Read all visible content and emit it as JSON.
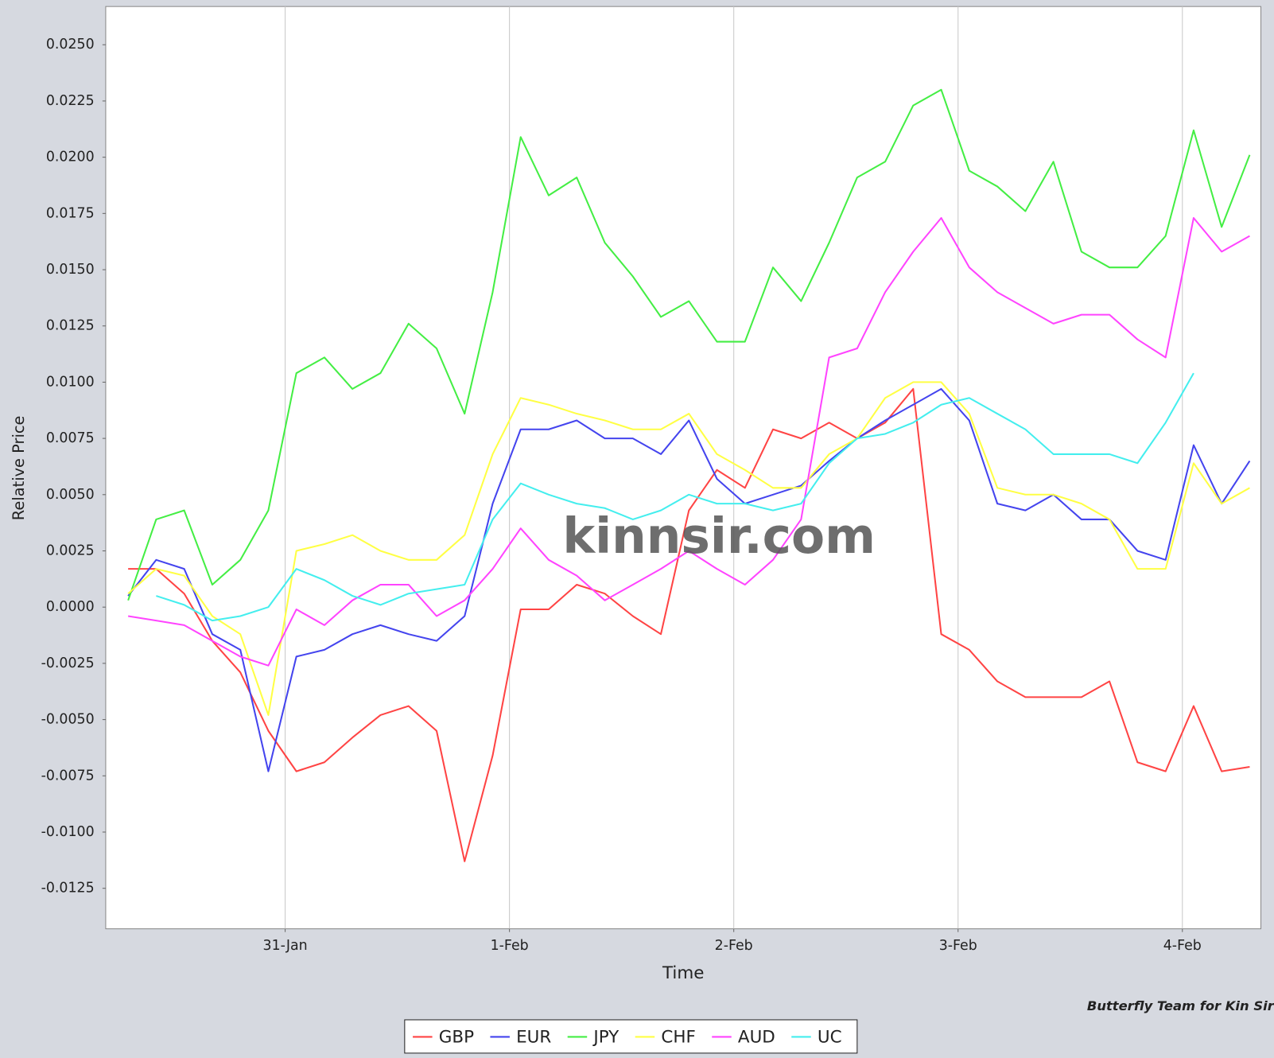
{
  "chart_data": {
    "type": "line",
    "xlabel": "Time",
    "ylabel": "Relative Price",
    "annotations": [
      "kinnsir.com",
      "Butterfly Team for Kin Sir"
    ],
    "grid": true,
    "legend": "bottom",
    "xlim": [
      -0.8,
      4.35
    ],
    "xticks": [
      {
        "value": 0,
        "label": "31-Jan"
      },
      {
        "value": 1,
        "label": "1-Feb"
      },
      {
        "value": 2,
        "label": "2-Feb"
      },
      {
        "value": 3,
        "label": "3-Feb"
      },
      {
        "value": 4,
        "label": "4-Feb"
      }
    ],
    "ylim": [
      -0.0143,
      0.0267
    ],
    "yticks": [
      {
        "value": 0.025,
        "label": "0.0250"
      },
      {
        "value": 0.0225,
        "label": "0.0225"
      },
      {
        "value": 0.02,
        "label": "0.0200"
      },
      {
        "value": 0.0175,
        "label": "0.0175"
      },
      {
        "value": 0.015,
        "label": "0.0150"
      },
      {
        "value": 0.0125,
        "label": "0.0125"
      },
      {
        "value": 0.01,
        "label": "0.0100"
      },
      {
        "value": 0.0075,
        "label": "0.0075"
      },
      {
        "value": 0.005,
        "label": "0.0050"
      },
      {
        "value": 0.0025,
        "label": "0.0025"
      },
      {
        "value": 0,
        "label": "0.0000"
      },
      {
        "value": -0.0025,
        "label": "-0.0025"
      },
      {
        "value": -0.005,
        "label": "-0.0050"
      },
      {
        "value": -0.0075,
        "label": "-0.0075"
      },
      {
        "value": -0.01,
        "label": "-0.0100"
      },
      {
        "value": -0.0125,
        "label": "-0.0125"
      }
    ],
    "x": [
      -0.7,
      -0.575,
      -0.45,
      -0.325,
      -0.2,
      -0.075,
      0.05,
      0.175,
      0.3,
      0.425,
      0.55,
      0.675,
      0.8,
      0.925,
      1.05,
      1.175,
      1.3,
      1.425,
      1.55,
      1.675,
      1.8,
      1.925,
      2.05,
      2.175,
      2.3,
      2.425,
      2.55,
      2.675,
      2.8,
      2.925,
      3.05,
      3.175,
      3.3,
      3.425,
      3.55,
      3.675,
      3.8,
      3.925,
      4.05,
      4.175,
      4.3
    ],
    "series": [
      {
        "name": "GBP",
        "color": "#ff4444",
        "values": [
          0.0017,
          0.0017,
          0.0006,
          -0.0015,
          -0.0029,
          -0.0055,
          -0.0073,
          -0.0069,
          -0.0058,
          -0.0048,
          -0.0044,
          -0.0055,
          -0.0113,
          -0.0066,
          -0.0001,
          -0.0001,
          0.001,
          0.0006,
          -0.0004,
          -0.0012,
          0.0043,
          0.0061,
          0.0053,
          0.0079,
          0.0075,
          0.0082,
          0.0075,
          0.0082,
          0.0097,
          -0.0012,
          -0.0019,
          -0.0033,
          -0.004,
          -0.004,
          -0.004,
          -0.0033,
          -0.0069,
          -0.0073,
          -0.0044,
          -0.0073,
          -0.0071
        ]
      },
      {
        "name": "EUR",
        "color": "#4444ee",
        "values": [
          0.0005,
          0.0021,
          0.0017,
          -0.0012,
          -0.0019,
          -0.0073,
          -0.0022,
          -0.0019,
          -0.0012,
          -0.0008,
          -0.0012,
          -0.0015,
          -0.0004,
          0.0046,
          0.0079,
          0.0079,
          0.0083,
          0.0075,
          0.0075,
          0.0068,
          0.0083,
          0.0057,
          0.0046,
          0.005,
          0.0054,
          0.0065,
          0.0075,
          0.0083,
          0.009,
          0.0097,
          0.0083,
          0.0046,
          0.0043,
          0.005,
          0.0039,
          0.0039,
          0.0025,
          0.0021,
          0.0072,
          0.0046,
          0.0065
        ]
      },
      {
        "name": "JPY",
        "color": "#44ee44",
        "values": [
          0.0003,
          0.0039,
          0.0043,
          0.001,
          0.0021,
          0.0043,
          0.0104,
          0.0111,
          0.0097,
          0.0104,
          0.0126,
          0.0115,
          0.0086,
          0.014,
          0.0209,
          0.0183,
          0.0191,
          0.0162,
          0.0147,
          0.0129,
          0.0136,
          0.0118,
          0.0118,
          0.0151,
          0.0136,
          0.0162,
          0.0191,
          0.0198,
          0.0223,
          0.023,
          0.0194,
          0.0187,
          0.0176,
          0.0198,
          0.0158,
          0.0151,
          0.0151,
          0.0165,
          0.0212,
          0.0169,
          0.0201
        ]
      },
      {
        "name": "CHF",
        "color": "#ffff44",
        "values": [
          0.0006,
          0.0017,
          0.0014,
          -0.0004,
          -0.0012,
          -0.0048,
          0.0025,
          0.0028,
          0.0032,
          0.0025,
          0.0021,
          0.0021,
          0.0032,
          0.0068,
          0.0093,
          0.009,
          0.0086,
          0.0083,
          0.0079,
          0.0079,
          0.0086,
          0.0068,
          0.0061,
          0.0053,
          0.0053,
          0.0068,
          0.0075,
          0.0093,
          0.01,
          0.01,
          0.0086,
          0.0053,
          0.005,
          0.005,
          0.0046,
          0.0039,
          0.0017,
          0.0017,
          0.0064,
          0.0046,
          0.0053
        ]
      },
      {
        "name": "AUD",
        "color": "#ff44ff",
        "values": [
          -0.0004,
          -0.0006,
          -0.0008,
          -0.0015,
          -0.0022,
          -0.0026,
          -0.0001,
          -0.0008,
          0.0003,
          0.001,
          0.001,
          -0.0004,
          0.0003,
          0.0017,
          0.0035,
          0.0021,
          0.0014,
          0.0003,
          0.001,
          0.0017,
          0.0025,
          0.0017,
          0.001,
          0.0021,
          0.0039,
          0.0111,
          0.0115,
          0.014,
          0.0158,
          0.0173,
          0.0151,
          0.014,
          0.0133,
          0.0126,
          0.013,
          0.013,
          0.0119,
          0.0111,
          0.0173,
          0.0158,
          0.0165
        ]
      },
      {
        "name": "UC",
        "color": "#44eeee",
        "values": [
          null,
          0.0005,
          0.0001,
          -0.0006,
          -0.0004,
          0,
          0.0017,
          0.0012,
          0.0005,
          0.0001,
          0.0006,
          0.0008,
          0.001,
          0.0039,
          0.0055,
          0.005,
          0.0046,
          0.0044,
          0.0039,
          0.0043,
          0.005,
          0.0046,
          0.0046,
          0.0043,
          0.0046,
          0.0064,
          0.0075,
          0.0077,
          0.0082,
          0.009,
          0.0093,
          0.0086,
          0.0079,
          0.0068,
          0.0068,
          0.0068,
          0.0064,
          0.0082,
          0.0104,
          null,
          null
        ]
      }
    ]
  }
}
